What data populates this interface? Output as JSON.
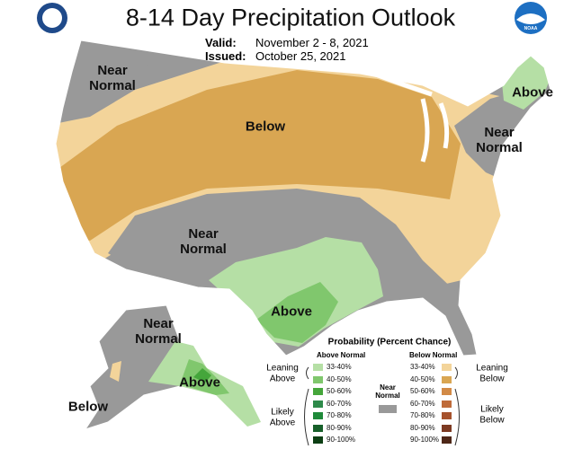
{
  "header": {
    "title": "8-14 Day Precipitation Outlook",
    "valid": {
      "label": "Valid:",
      "value": "November 2 - 8, 2021"
    },
    "issued": {
      "label": "Issued:",
      "value": "October 25, 2021"
    },
    "logo_right": "NOAA"
  },
  "map": {
    "labels": [
      "Near Normal",
      "Below",
      "Near Normal",
      "Above",
      "Near Normal",
      "Above",
      "Near Normal",
      "Above",
      "Below"
    ]
  },
  "legend": {
    "title": "Probability (Percent Chance)",
    "above": {
      "heading": "Above Normal",
      "ranges": [
        {
          "label": "33-40%",
          "color": "#b5dfa5"
        },
        {
          "label": "40-50%",
          "color": "#80c76d"
        },
        {
          "label": "50-60%",
          "color": "#45a63b"
        },
        {
          "label": "60-70%",
          "color": "#2e8a4a"
        },
        {
          "label": "70-80%",
          "color": "#1f8a3a"
        },
        {
          "label": "80-90%",
          "color": "#17602a"
        },
        {
          "label": "90-100%",
          "color": "#0d3f14"
        }
      ]
    },
    "near": {
      "heading": "Near Normal",
      "color": "#999999"
    },
    "below": {
      "heading": "Below Normal",
      "ranges": [
        {
          "label": "33-40%",
          "color": "#f3d49a"
        },
        {
          "label": "40-50%",
          "color": "#d9a652"
        },
        {
          "label": "50-60%",
          "color": "#d28a46"
        },
        {
          "label": "60-70%",
          "color": "#bf6b3a"
        },
        {
          "label": "70-80%",
          "color": "#a6522d"
        },
        {
          "label": "80-90%",
          "color": "#7d3a22"
        },
        {
          "label": "90-100%",
          "color": "#4e2717"
        }
      ]
    },
    "groups": [
      "Leaning Above",
      "Likely Above",
      "Leaning Below",
      "Likely Below"
    ]
  }
}
